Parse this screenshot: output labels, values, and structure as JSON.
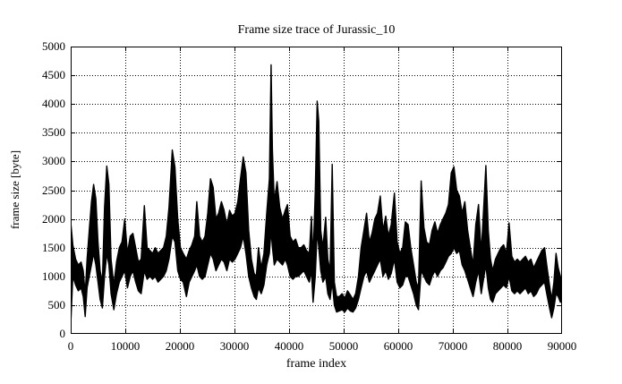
{
  "title": "Frame size trace of Jurassic_10",
  "x_axis": {
    "label": "frame index",
    "ticks": [
      0,
      10000,
      20000,
      30000,
      40000,
      50000,
      60000,
      70000,
      80000,
      90000
    ]
  },
  "y_axis": {
    "label": "frame size [byte]",
    "ticks": [
      0,
      500,
      1000,
      1500,
      2000,
      2500,
      3000,
      3500,
      4000,
      4500,
      5000
    ]
  },
  "colors": {
    "trace": "#000000",
    "grid": "#000000",
    "background": "#ffffff",
    "text": "#000000"
  },
  "chart_data": {
    "type": "line",
    "title": "Frame size trace of Jurassic_10",
    "xlabel": "frame index",
    "ylabel": "frame size [byte]",
    "xlim": [
      0,
      90000
    ],
    "ylim": [
      0,
      5000
    ],
    "grid": true,
    "legend": "none",
    "series_name": "frame size trace (min/max envelope per ~500-frame bin)",
    "samples_format": [
      "frame_index",
      "min_frame_size_byte",
      "max_frame_size_byte"
    ],
    "samples": [
      [
        0,
        150,
        1950
      ],
      [
        400,
        1000,
        1550
      ],
      [
        900,
        850,
        1300
      ],
      [
        1400,
        750,
        1200
      ],
      [
        1900,
        800,
        1250
      ],
      [
        2300,
        650,
        1100
      ],
      [
        2650,
        300,
        700
      ],
      [
        3000,
        800,
        1300
      ],
      [
        3400,
        1000,
        1800
      ],
      [
        3800,
        1200,
        2300
      ],
      [
        4200,
        1400,
        2600
      ],
      [
        4600,
        1200,
        2350
      ],
      [
        5000,
        900,
        1600
      ],
      [
        5400,
        600,
        1100
      ],
      [
        5800,
        450,
        900
      ],
      [
        6200,
        1000,
        2200
      ],
      [
        6600,
        1400,
        2920
      ],
      [
        7000,
        1200,
        2600
      ],
      [
        7400,
        700,
        1300
      ],
      [
        7900,
        420,
        850
      ],
      [
        8400,
        700,
        1250
      ],
      [
        8900,
        900,
        1500
      ],
      [
        9400,
        1000,
        1600
      ],
      [
        9900,
        1100,
        2000
      ],
      [
        10400,
        800,
        1400
      ],
      [
        10900,
        1000,
        1700
      ],
      [
        11400,
        1100,
        1750
      ],
      [
        11900,
        900,
        1500
      ],
      [
        12400,
        750,
        1250
      ],
      [
        12900,
        700,
        1300
      ],
      [
        13500,
        1100,
        2230
      ],
      [
        14000,
        950,
        1500
      ],
      [
        14500,
        1000,
        1450
      ],
      [
        15000,
        950,
        1400
      ],
      [
        15500,
        1000,
        1500
      ],
      [
        16000,
        900,
        1400
      ],
      [
        16500,
        950,
        1450
      ],
      [
        17000,
        1000,
        1500
      ],
      [
        17500,
        1100,
        1700
      ],
      [
        18000,
        1300,
        2200
      ],
      [
        18600,
        1700,
        3200
      ],
      [
        19100,
        1600,
        2900
      ],
      [
        19600,
        1100,
        2000
      ],
      [
        20100,
        950,
        1500
      ],
      [
        20600,
        900,
        1400
      ],
      [
        21200,
        650,
        1300
      ],
      [
        21700,
        900,
        1450
      ],
      [
        22200,
        1000,
        1550
      ],
      [
        22700,
        1100,
        1700
      ],
      [
        23100,
        1200,
        2300
      ],
      [
        23600,
        1000,
        1700
      ],
      [
        24100,
        950,
        1600
      ],
      [
        24600,
        1000,
        1700
      ],
      [
        25100,
        1200,
        2100
      ],
      [
        25600,
        1400,
        2700
      ],
      [
        26100,
        1300,
        2550
      ],
      [
        26600,
        1100,
        2000
      ],
      [
        27100,
        1200,
        2100
      ],
      [
        27600,
        1300,
        2300
      ],
      [
        28100,
        1250,
        2150
      ],
      [
        28600,
        1100,
        1900
      ],
      [
        29100,
        1300,
        2150
      ],
      [
        29600,
        1250,
        2050
      ],
      [
        30100,
        1300,
        2100
      ],
      [
        30600,
        1400,
        2300
      ],
      [
        31100,
        1500,
        2700
      ],
      [
        31600,
        1700,
        3080
      ],
      [
        32100,
        1400,
        2800
      ],
      [
        32600,
        1000,
        1800
      ],
      [
        33100,
        800,
        1300
      ],
      [
        33600,
        650,
        1050
      ],
      [
        34000,
        600,
        1000
      ],
      [
        34400,
        800,
        1500
      ],
      [
        34900,
        700,
        1150
      ],
      [
        35400,
        850,
        1400
      ],
      [
        35900,
        1200,
        2100
      ],
      [
        36400,
        1400,
        2700
      ],
      [
        36700,
        1800,
        4680
      ],
      [
        36950,
        1500,
        3200
      ],
      [
        37300,
        1200,
        2300
      ],
      [
        37800,
        1300,
        2650
      ],
      [
        38300,
        1250,
        2200
      ],
      [
        38800,
        1200,
        2000
      ],
      [
        39300,
        1300,
        2150
      ],
      [
        39700,
        1200,
        2250
      ],
      [
        40200,
        1000,
        1700
      ],
      [
        40700,
        950,
        1600
      ],
      [
        41200,
        1000,
        1650
      ],
      [
        41700,
        1000,
        1500
      ],
      [
        42200,
        1050,
        1500
      ],
      [
        42700,
        1100,
        1550
      ],
      [
        43200,
        1000,
        1450
      ],
      [
        43700,
        900,
        1400
      ],
      [
        44100,
        1100,
        2040
      ],
      [
        44400,
        550,
        1300
      ],
      [
        44800,
        1000,
        2500
      ],
      [
        45150,
        1800,
        4050
      ],
      [
        45450,
        1500,
        3700
      ],
      [
        45800,
        1100,
        1800
      ],
      [
        46200,
        900,
        1500
      ],
      [
        46700,
        1000,
        2030
      ],
      [
        47100,
        700,
        1300
      ],
      [
        47500,
        600,
        1100
      ],
      [
        47900,
        900,
        2950
      ],
      [
        48300,
        500,
        900
      ],
      [
        48700,
        380,
        650
      ],
      [
        49200,
        400,
        650
      ],
      [
        49700,
        420,
        700
      ],
      [
        50200,
        380,
        620
      ],
      [
        50700,
        450,
        750
      ],
      [
        51200,
        400,
        680
      ],
      [
        51700,
        380,
        600
      ],
      [
        52200,
        450,
        700
      ],
      [
        52700,
        600,
        1000
      ],
      [
        53200,
        800,
        1500
      ],
      [
        53700,
        1000,
        1800
      ],
      [
        54200,
        1100,
        2100
      ],
      [
        54700,
        900,
        1600
      ],
      [
        55200,
        1000,
        1750
      ],
      [
        55700,
        1100,
        2000
      ],
      [
        56200,
        1200,
        2100
      ],
      [
        56700,
        1300,
        2400
      ],
      [
        57200,
        1000,
        1800
      ],
      [
        57700,
        1100,
        2050
      ],
      [
        58200,
        950,
        1700
      ],
      [
        58700,
        1050,
        1900
      ],
      [
        59300,
        1300,
        2450
      ],
      [
        59800,
        900,
        1600
      ],
      [
        60300,
        800,
        1400
      ],
      [
        60800,
        850,
        1500
      ],
      [
        61300,
        1000,
        1950
      ],
      [
        61800,
        1000,
        1900
      ],
      [
        62300,
        850,
        1500
      ],
      [
        62800,
        700,
        1200
      ],
      [
        63300,
        500,
        900
      ],
      [
        63700,
        420,
        800
      ],
      [
        64200,
        1100,
        2660
      ],
      [
        64700,
        1000,
        1850
      ],
      [
        65200,
        900,
        1600
      ],
      [
        65700,
        850,
        1550
      ],
      [
        66200,
        1000,
        1800
      ],
      [
        66700,
        1100,
        1950
      ],
      [
        67200,
        1000,
        1750
      ],
      [
        67700,
        1100,
        1900
      ],
      [
        68200,
        1150,
        2000
      ],
      [
        68700,
        1250,
        2100
      ],
      [
        69200,
        1350,
        2250
      ],
      [
        69700,
        1400,
        2800
      ],
      [
        70200,
        1500,
        2910
      ],
      [
        70700,
        1400,
        2500
      ],
      [
        71200,
        1450,
        2400
      ],
      [
        71700,
        1200,
        2100
      ],
      [
        72200,
        1100,
        2300
      ],
      [
        72700,
        950,
        1800
      ],
      [
        73200,
        800,
        1500
      ],
      [
        73700,
        650,
        1200
      ],
      [
        74200,
        900,
        1900
      ],
      [
        74700,
        1100,
        2250
      ],
      [
        75200,
        700,
        1400
      ],
      [
        75700,
        1000,
        2300
      ],
      [
        76050,
        1200,
        2930
      ],
      [
        76500,
        800,
        1800
      ],
      [
        76900,
        600,
        1300
      ],
      [
        77300,
        550,
        1100
      ],
      [
        77800,
        700,
        1300
      ],
      [
        78300,
        750,
        1400
      ],
      [
        78800,
        800,
        1500
      ],
      [
        79300,
        850,
        1550
      ],
      [
        79800,
        800,
        1400
      ],
      [
        80300,
        1000,
        1930
      ],
      [
        80800,
        750,
        1350
      ],
      [
        81300,
        700,
        1250
      ],
      [
        81800,
        750,
        1300
      ],
      [
        82300,
        700,
        1250
      ],
      [
        82800,
        750,
        1300
      ],
      [
        83300,
        800,
        1350
      ],
      [
        83800,
        700,
        1250
      ],
      [
        84300,
        750,
        1300
      ],
      [
        84800,
        650,
        1150
      ],
      [
        85300,
        700,
        1250
      ],
      [
        85800,
        800,
        1350
      ],
      [
        86300,
        850,
        1450
      ],
      [
        86800,
        900,
        1500
      ],
      [
        87200,
        700,
        1200
      ],
      [
        87700,
        450,
        850
      ],
      [
        88100,
        280,
        600
      ],
      [
        88500,
        450,
        900
      ],
      [
        88900,
        700,
        1400
      ],
      [
        89300,
        650,
        1150
      ],
      [
        89700,
        550,
        1000
      ],
      [
        90000,
        620,
        820
      ]
    ]
  }
}
